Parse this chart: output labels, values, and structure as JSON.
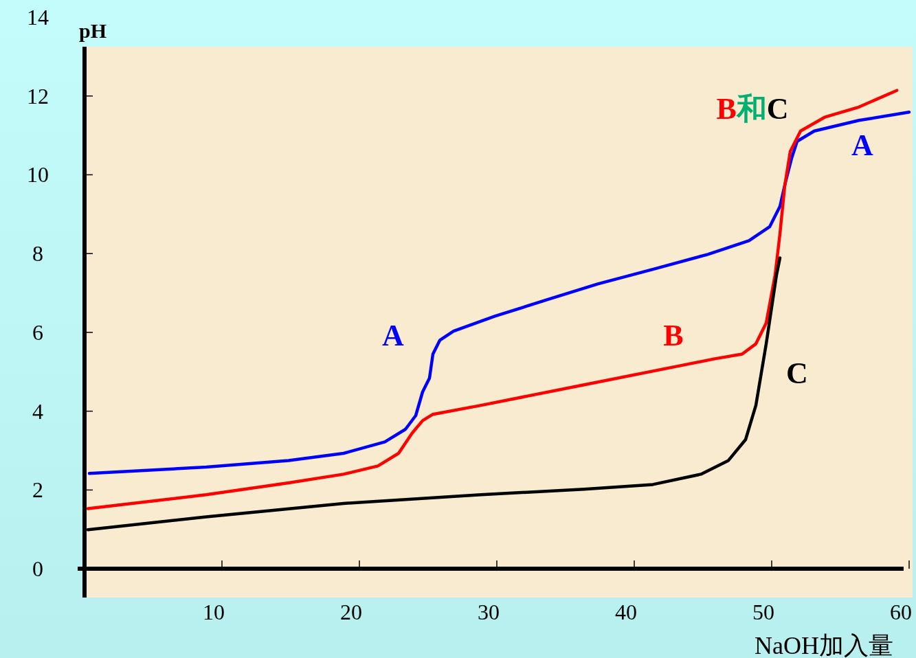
{
  "chart_data": {
    "type": "line",
    "ylabel": "pH",
    "xlabel": "NaOH加入量",
    "xlim": [
      -0.5,
      60.25
    ],
    "ylim": [
      -0.73,
      14
    ],
    "xticks": [
      10,
      20,
      30,
      40,
      50,
      60
    ],
    "yticks": [
      0,
      2,
      4,
      6,
      8,
      10,
      12,
      14
    ],
    "line_style": "solid",
    "series": [
      {
        "name": "A",
        "color": "#0000ff",
        "x": [
          0.35,
          8.85,
          14.85,
          18.85,
          21.85,
          23.35,
          24.1,
          24.6,
          25.1,
          25.35,
          25.85,
          26.85,
          29.85,
          33.85,
          37.35,
          41.35,
          45.35,
          48.35,
          49.85,
          50.6,
          51.0,
          51.45,
          51.85,
          53.1,
          56.35,
          60.0
        ],
        "values": [
          2.42,
          2.58,
          2.75,
          2.93,
          3.22,
          3.54,
          3.89,
          4.49,
          4.84,
          5.45,
          5.8,
          6.03,
          6.41,
          6.85,
          7.23,
          7.6,
          7.98,
          8.33,
          8.68,
          9.2,
          9.81,
          10.42,
          10.85,
          11.11,
          11.38,
          11.59
        ]
      },
      {
        "name": "B",
        "color": "#ff0000",
        "x": [
          0.25,
          8.85,
          14.85,
          18.85,
          21.35,
          22.85,
          23.85,
          24.6,
          25.35,
          28.85,
          36.35,
          43.85,
          45.85,
          47.85,
          48.85,
          49.6,
          50.25,
          50.6,
          50.95,
          51.35,
          52.1,
          53.85,
          56.35,
          59.1
        ],
        "values": [
          1.53,
          1.88,
          2.18,
          2.4,
          2.61,
          2.93,
          3.45,
          3.76,
          3.92,
          4.15,
          4.67,
          5.19,
          5.33,
          5.45,
          5.71,
          6.24,
          7.46,
          8.5,
          9.72,
          10.59,
          11.11,
          11.46,
          11.72,
          12.14
        ]
      },
      {
        "name": "C",
        "color": "#000000",
        "x": [
          0.25,
          8.85,
          18.85,
          28.85,
          36.35,
          41.35,
          44.85,
          46.85,
          48.1,
          48.85,
          49.6,
          50.35,
          50.6
        ],
        "values": [
          0.99,
          1.32,
          1.66,
          1.88,
          2.02,
          2.14,
          2.4,
          2.75,
          3.28,
          4.15,
          5.71,
          7.46,
          7.89
        ]
      }
    ],
    "annotations": [
      "B和C"
    ]
  }
}
